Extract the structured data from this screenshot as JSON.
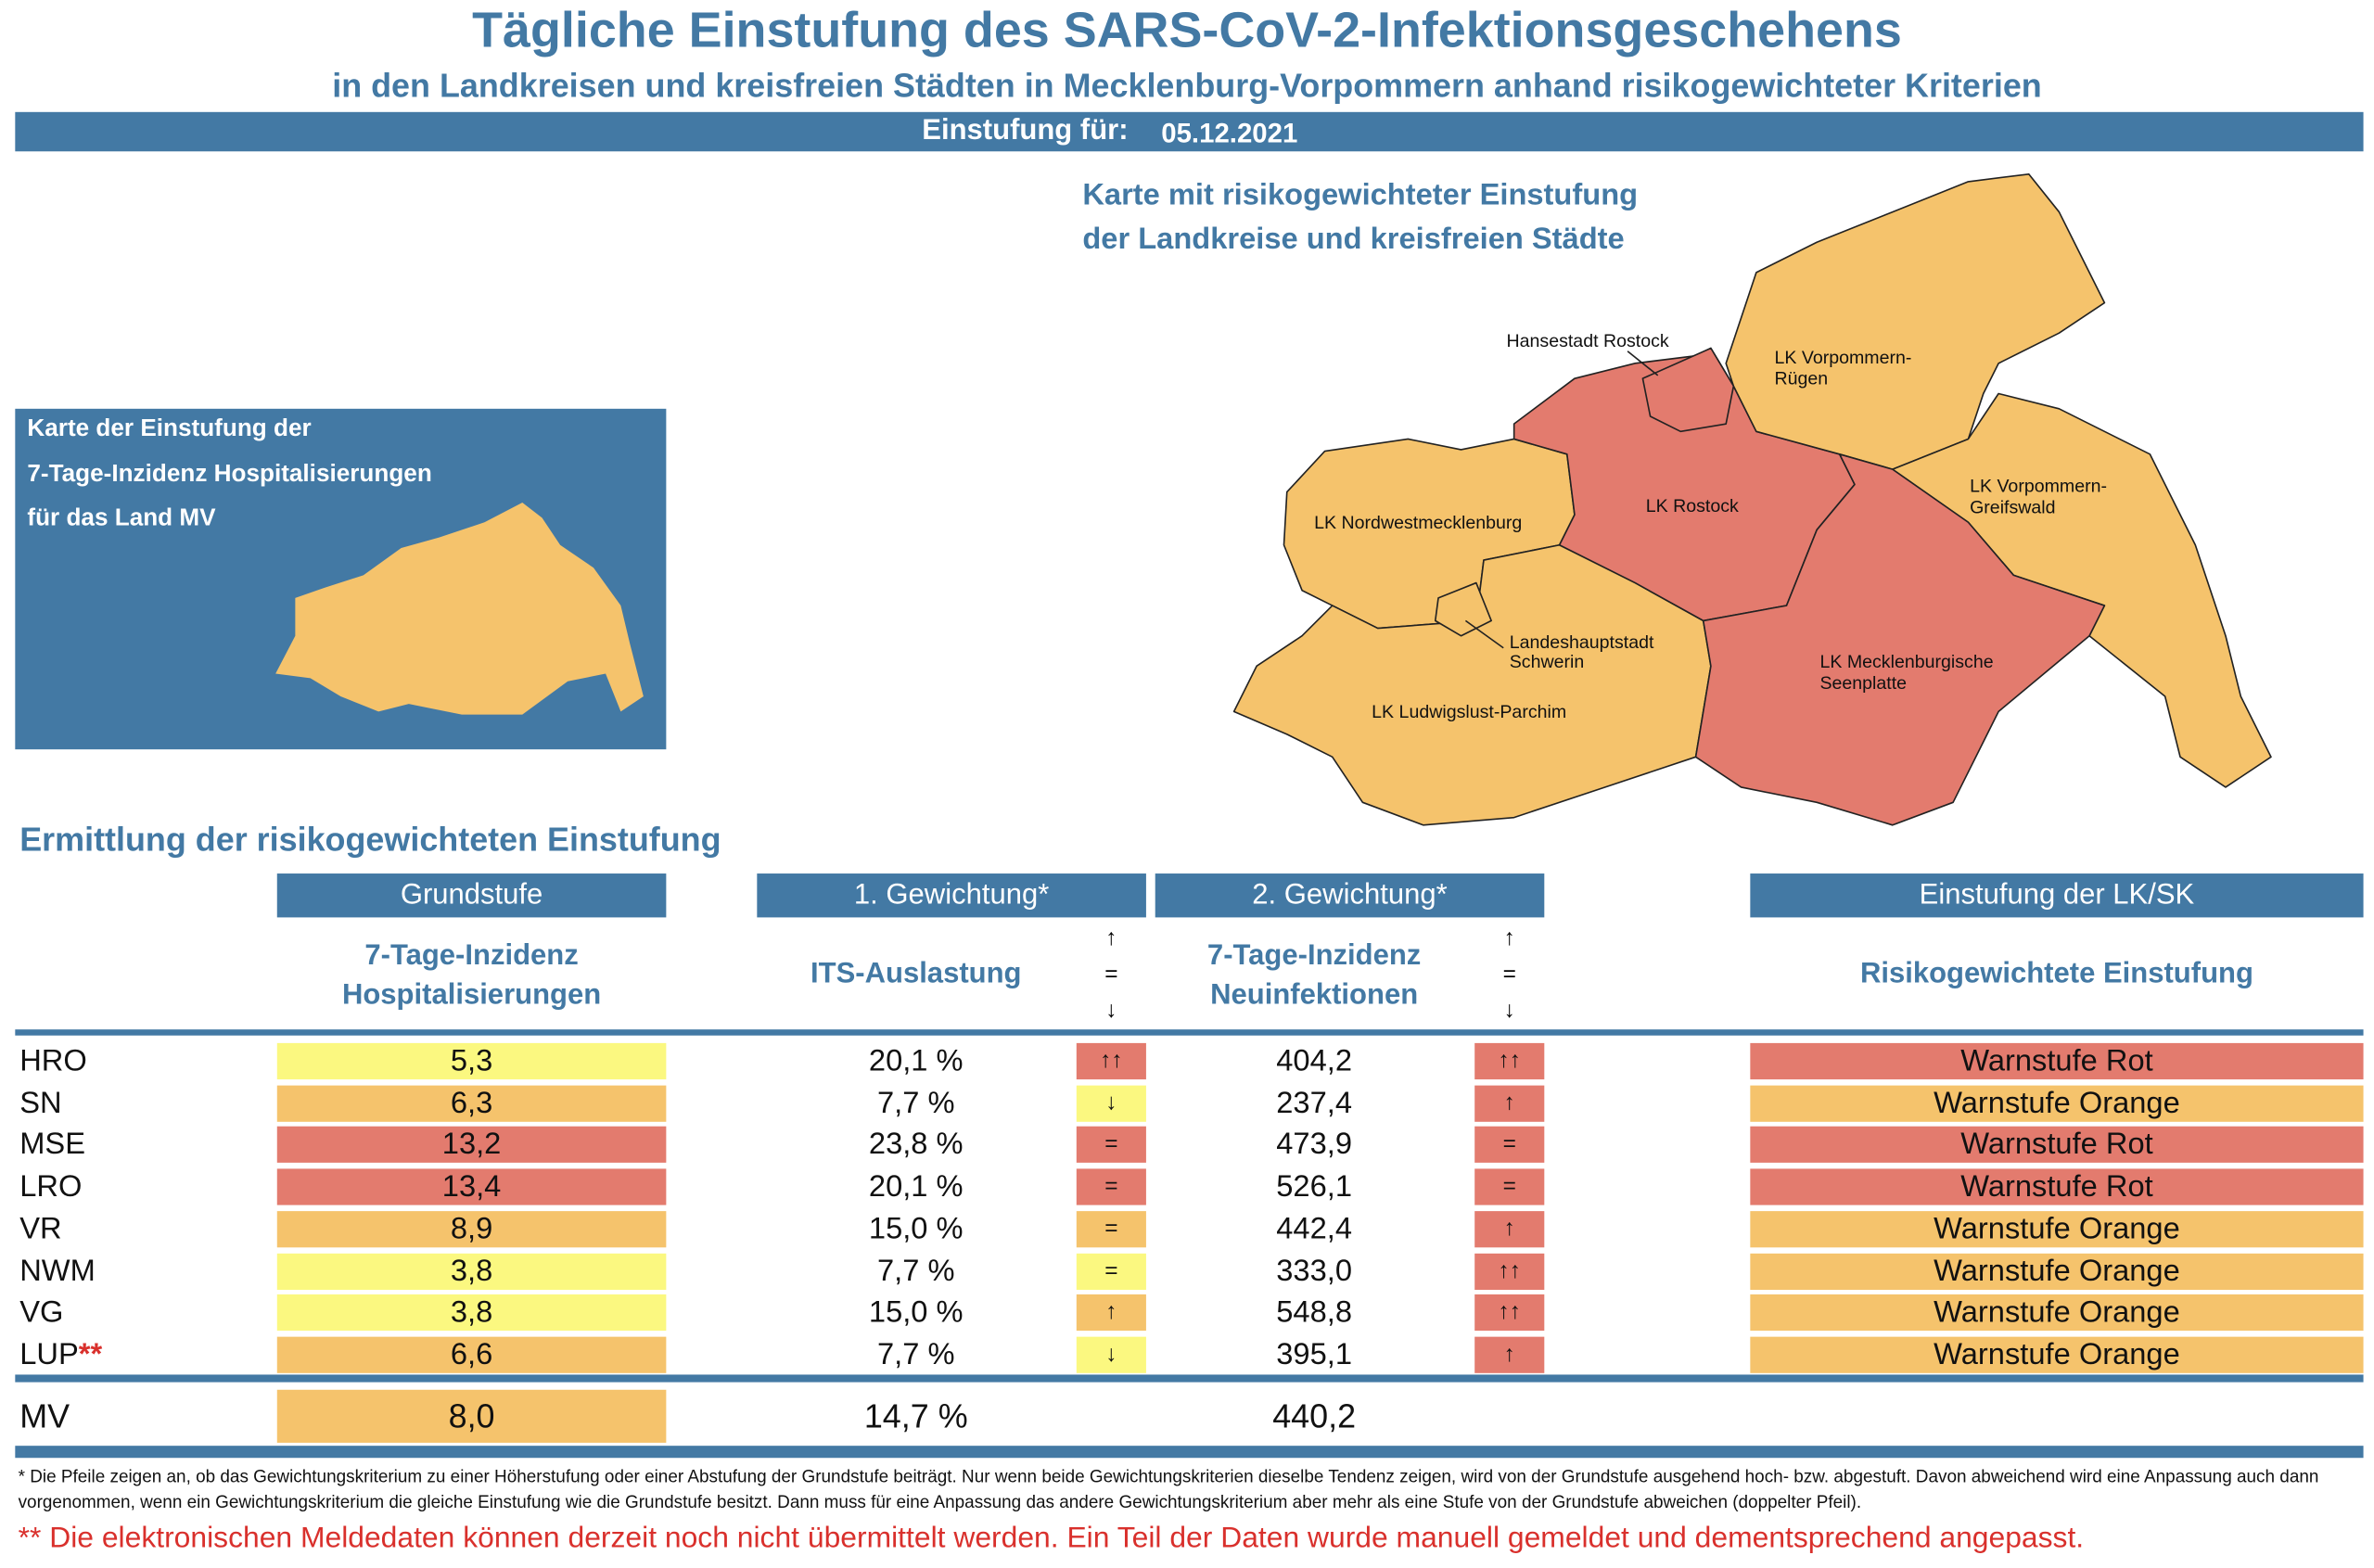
{
  "header": {
    "title": "Tägliche Einstufung des SARS-CoV-2-Infektionsgeschehens",
    "subtitle": "in den Landkreisen und kreisfreien Städten in Mecklenburg-Vorpommern anhand risikogewichteter Kriterien",
    "date_label": "Einstufung für:",
    "date": "05.12.2021"
  },
  "inset": {
    "lines": [
      "Karte der Einstufung der",
      "7-Tage-Inzidenz Hospitalisierungen",
      "für das Land MV"
    ]
  },
  "map": {
    "title_lines": [
      "Karte mit risikogewichteter Einstufung",
      "der Landkreise und kreisfreien Städte"
    ],
    "regions": [
      {
        "label_lines": [
          "Hansestadt Rostock"
        ]
      },
      {
        "label_lines": [
          "LK Vorpommern-",
          "Rügen"
        ]
      },
      {
        "label_lines": [
          "LK Nordwestmecklenburg"
        ]
      },
      {
        "label_lines": [
          "LK Rostock"
        ]
      },
      {
        "label_lines": [
          "LK Vorpommern-",
          "Greifswald"
        ]
      },
      {
        "label_lines": [
          "Landeshauptstadt",
          "Schwerin"
        ]
      },
      {
        "label_lines": [
          "LK Mecklenburgische",
          "Seenplatte"
        ]
      },
      {
        "label_lines": [
          "LK Ludwigslust-Parchim"
        ]
      }
    ]
  },
  "table": {
    "title": "Ermittlung der risikogewichteten Einstufung",
    "groups": [
      "Grundstufe",
      "1. Gewichtung*",
      "2. Gewichtung*",
      "Einstufung der LK/SK"
    ],
    "subheaders": {
      "hospitalization": [
        "7-Tage-Inzidenz",
        "Hospitalisierungen"
      ],
      "its": [
        "ITS-Auslastung"
      ],
      "trend_legend_1": [
        "↑",
        "=",
        "↓"
      ],
      "incidence": [
        "7-Tage-Inzidenz",
        "Neuinfektionen"
      ],
      "trend_legend_2": [
        "↑",
        "=",
        "↓"
      ],
      "rating": [
        "Risikogewichtete Einstufung"
      ]
    },
    "rows": [
      {
        "region": "HRO",
        "hospitalization": "5,3",
        "hosp_color": "#fbf880",
        "its": "20,1 %",
        "its_trend": "↑↑",
        "its_trend_color": "#e37b6e",
        "incidence": "404,2",
        "inc_trend": "↑↑",
        "inc_trend_color": "#e37b6e",
        "rating": "Warnstufe Rot",
        "rating_color": "#e37b6e"
      },
      {
        "region": "SN",
        "hospitalization": "6,3",
        "hosp_color": "#f5c36c",
        "its": "7,7 %",
        "its_trend": "↓",
        "its_trend_color": "#fbf880",
        "incidence": "237,4",
        "inc_trend": "↑",
        "inc_trend_color": "#e37b6e",
        "rating": "Warnstufe Orange",
        "rating_color": "#f5c36c"
      },
      {
        "region": "MSE",
        "hospitalization": "13,2",
        "hosp_color": "#e37b6e",
        "its": "23,8 %",
        "its_trend": "=",
        "its_trend_color": "#e37b6e",
        "incidence": "473,9",
        "inc_trend": "=",
        "inc_trend_color": "#e37b6e",
        "rating": "Warnstufe Rot",
        "rating_color": "#e37b6e"
      },
      {
        "region": "LRO",
        "hospitalization": "13,4",
        "hosp_color": "#e37b6e",
        "its": "20,1 %",
        "its_trend": "=",
        "its_trend_color": "#e37b6e",
        "incidence": "526,1",
        "inc_trend": "=",
        "inc_trend_color": "#e37b6e",
        "rating": "Warnstufe Rot",
        "rating_color": "#e37b6e"
      },
      {
        "region": "VR",
        "hospitalization": "8,9",
        "hosp_color": "#f5c36c",
        "its": "15,0 %",
        "its_trend": "=",
        "its_trend_color": "#f5c36c",
        "incidence": "442,4",
        "inc_trend": "↑",
        "inc_trend_color": "#e37b6e",
        "rating": "Warnstufe Orange",
        "rating_color": "#f5c36c"
      },
      {
        "region": "NWM",
        "hospitalization": "3,8",
        "hosp_color": "#fbf880",
        "its": "7,7 %",
        "its_trend": "=",
        "its_trend_color": "#fbf880",
        "incidence": "333,0",
        "inc_trend": "↑↑",
        "inc_trend_color": "#e37b6e",
        "rating": "Warnstufe Orange",
        "rating_color": "#f5c36c"
      },
      {
        "region": "VG",
        "hospitalization": "3,8",
        "hosp_color": "#fbf880",
        "its": "15,0 %",
        "its_trend": "↑",
        "its_trend_color": "#f5c36c",
        "incidence": "548,8",
        "inc_trend": "↑↑",
        "inc_trend_color": "#e37b6e",
        "rating": "Warnstufe Orange",
        "rating_color": "#f5c36c"
      },
      {
        "region": "LUP",
        "marker": "**",
        "hospitalization": "6,6",
        "hosp_color": "#f5c36c",
        "its": "7,7 %",
        "its_trend": "↓",
        "its_trend_color": "#fbf880",
        "incidence": "395,1",
        "inc_trend": "↑",
        "inc_trend_color": "#e37b6e",
        "rating": "Warnstufe Orange",
        "rating_color": "#f5c36c"
      }
    ],
    "total": {
      "region": "MV",
      "hospitalization": "8,0",
      "hosp_color": "#f5c36c",
      "its": "14,7 %",
      "incidence": "440,2"
    }
  },
  "footnotes": {
    "arrows": "* Die Pfeile zeigen an, ob das Gewichtungskriterium zu einer Höherstufung oder einer Abstufung der Grundstufe beiträgt. Nur wenn beide Gewichtungskriterien dieselbe Tendenz zeigen, wird von der Grundstufe ausgehend hoch- bzw. abgestuft.  Davon abweichend wird eine Anpassung auch dann vorgenommen, wenn ein Gewichtungskriterium die gleiche Einstufung wie die Grundstufe besitzt. Dann muss für eine Anpassung das andere Gewichtungskriterium aber mehr als eine Stufe von der Grundstufe abweichen (doppelter Pfeil).",
    "data_note": "** Die elektronischen Meldedaten können derzeit noch nicht übermittelt werden. Ein Teil der Daten wurde manuell gemeldet und dementsprechend angepasst."
  }
}
